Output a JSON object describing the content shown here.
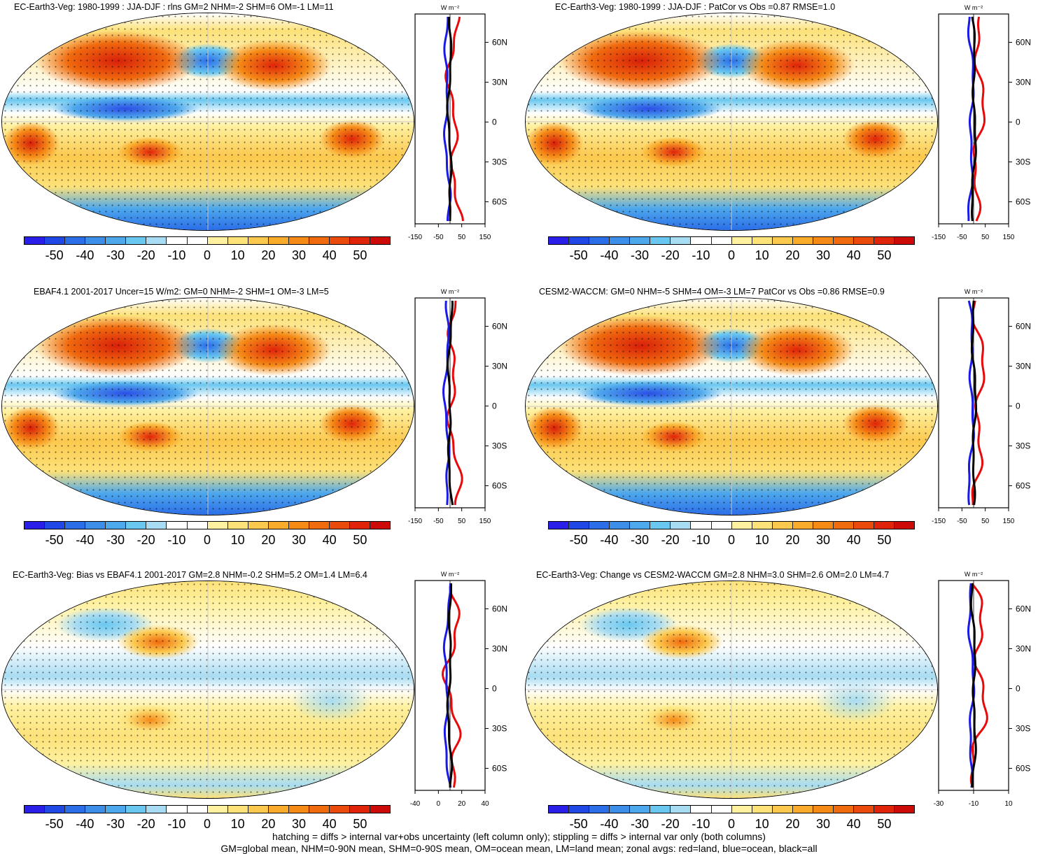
{
  "colorbar": {
    "labels": [
      "-50",
      "-40",
      "-30",
      "-20",
      "-10",
      "0",
      "10",
      "20",
      "30",
      "40",
      "50"
    ],
    "colors": [
      "#2a1fe8",
      "#1f48e6",
      "#2b6ee8",
      "#3d8ee8",
      "#4ea8ec",
      "#6ac8f0",
      "#a8dcf2",
      "#ffffff",
      "#ffffff",
      "#fff1a0",
      "#fde27a",
      "#fcc94e",
      "#f9ab2c",
      "#f58a16",
      "#f06a0e",
      "#ea4a0c",
      "#e0240a",
      "#cc0a08"
    ]
  },
  "zonal_units": "W m⁻²",
  "lat_labels": [
    "60N",
    "30N",
    "0",
    "30S",
    "60S"
  ],
  "panels": [
    {
      "id": "p1",
      "title": "EC-Earth3-Veg: 1980-1999 : JJA-DJF : rlns GM=2 NHM=-2 SHM=6 OM=-1 LM=11",
      "xticks": [
        "-150",
        "-50",
        "50",
        "150"
      ]
    },
    {
      "id": "p2",
      "title": "EC-Earth3-Veg: 1980-1999 : JJA-DJF : PatCor vs Obs =0.87 RMSE=1.0",
      "xticks": [
        "-150",
        "-50",
        "50",
        "150"
      ]
    },
    {
      "id": "p3",
      "title": "EBAF4.1 2001-2017 Uncer=15 W/m2: GM=0 NHM=-2 SHM=1 OM=-3 LM=5",
      "xticks": [
        "-150",
        "-50",
        "50",
        "150"
      ]
    },
    {
      "id": "p4",
      "title": "CESM2-WACCM: GM=0 NHM=-5 SHM=4 OM=-3 LM=7 PatCor vs Obs =0.86 RMSE=0.9",
      "xticks": [
        "-150",
        "-50",
        "50",
        "150"
      ]
    },
    {
      "id": "p5",
      "title": "EC-Earth3-Veg: Bias vs EBAF4.1 2001-2017 GM=2.8 NHM=-0.2 SHM=5.2 OM=1.4 LM=6.4",
      "xticks": [
        "-40",
        "0",
        "20",
        "40"
      ]
    },
    {
      "id": "p6",
      "title": "EC-Earth3-Veg: Change vs CESM2-WACCM GM=2.8 NHM=3.0 SHM=2.6 OM=2.0 LM=4.7",
      "xticks": [
        "-30",
        "-10",
        "10"
      ]
    }
  ],
  "footer": {
    "line1": "hatching = diffs > internal var+obs uncertainty (left column only); stippling = diffs > internal var only (both columns)",
    "line2": "GM=global mean, NHM=0-90N mean, SHM=0-90S mean, OM=ocean mean, LM=land mean; zonal avgs: red=land, blue=ocean, black=all"
  }
}
